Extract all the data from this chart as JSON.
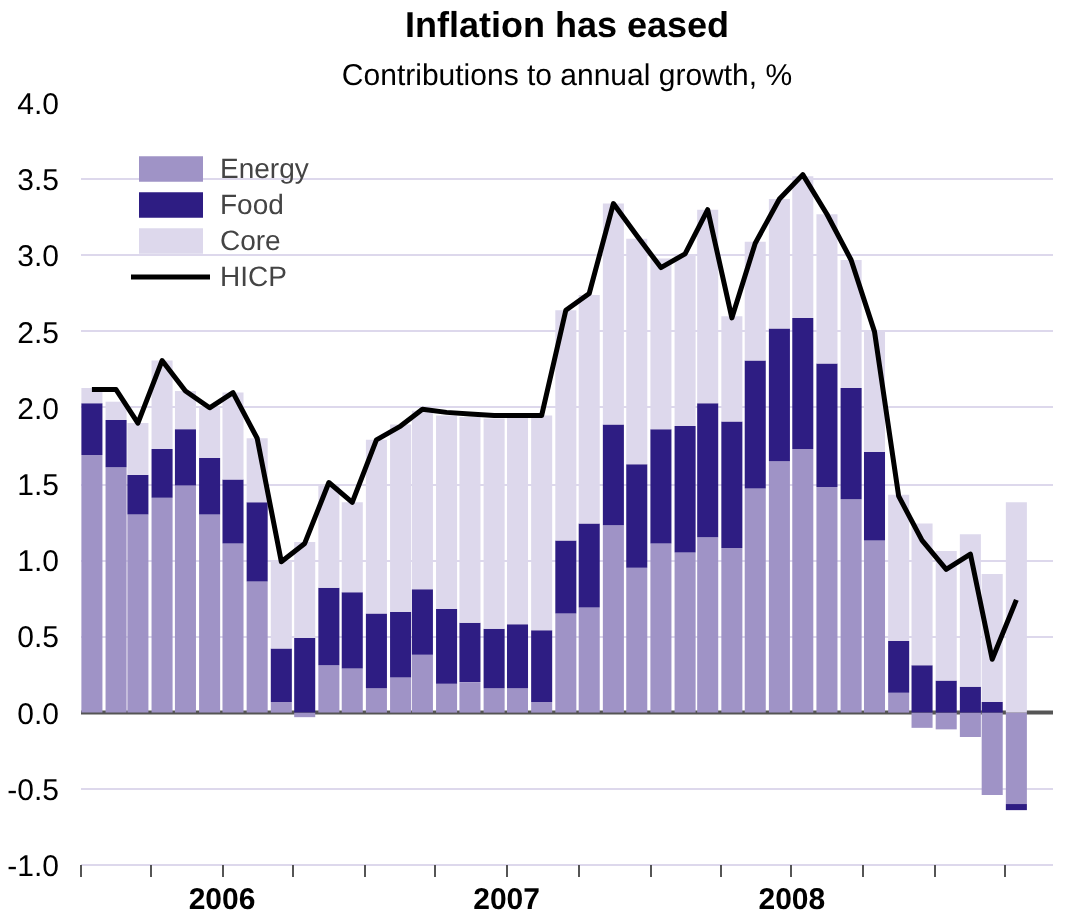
{
  "chart_data": {
    "type": "bar",
    "stacked": true,
    "title": "Inflation has eased",
    "subtitle": "Contributions to annual growth, %",
    "x": [
      "2006-01-15",
      "2006-02-15",
      "2006-03-15",
      "2006-04-15",
      "2006-05-15",
      "2006-06-15",
      "2006-07-15",
      "2006-08-15",
      "2006-09-15",
      "2006-10-15",
      "2006-11-15",
      "2006-12-15",
      "2007-01-15",
      "2007-02-15",
      "2007-03-15",
      "2007-04-15",
      "2007-05-15",
      "2007-06-15",
      "2007-07-15",
      "2007-08-15",
      "2007-09-15",
      "2007-10-15",
      "2007-11-15",
      "2007-12-15",
      "2008-01-15",
      "2008-02-15",
      "2008-03-15",
      "2008-04-15",
      "2008-05-15",
      "2008-06-15",
      "2008-07-15",
      "2008-08-15",
      "2008-09-15",
      "2008-10-15",
      "2008-11-15",
      "2008-12-15",
      "2009-01-15",
      "2009-02-15",
      "2009-03-15",
      "2009-04-15"
    ],
    "series": [
      {
        "name": "Energy",
        "color": "#9f93c6",
        "values": [
          1.69,
          1.61,
          1.3,
          1.41,
          1.49,
          1.3,
          1.11,
          0.86,
          0.07,
          -0.03,
          0.31,
          0.29,
          0.16,
          0.23,
          0.38,
          0.19,
          0.2,
          0.16,
          0.16,
          0.07,
          0.65,
          0.69,
          1.23,
          0.95,
          1.11,
          1.05,
          1.15,
          1.08,
          1.47,
          1.65,
          1.73,
          1.48,
          1.4,
          1.13,
          0.13,
          -0.1,
          -0.11,
          -0.16,
          -0.54,
          -0.6
        ]
      },
      {
        "name": "Food",
        "color": "#2e1d83",
        "values": [
          0.34,
          0.31,
          0.26,
          0.32,
          0.37,
          0.37,
          0.42,
          0.52,
          0.35,
          0.49,
          0.51,
          0.5,
          0.49,
          0.43,
          0.43,
          0.49,
          0.39,
          0.39,
          0.42,
          0.47,
          0.48,
          0.55,
          0.66,
          0.68,
          0.75,
          0.83,
          0.88,
          0.83,
          0.84,
          0.87,
          0.86,
          0.81,
          0.73,
          0.58,
          0.34,
          0.31,
          0.21,
          0.17,
          0.07,
          -0.04
        ]
      },
      {
        "name": "Core",
        "color": "#ddd8ec",
        "values": [
          0.1,
          0.12,
          0.34,
          0.58,
          0.25,
          0.34,
          0.57,
          0.42,
          0.57,
          0.63,
          0.68,
          0.59,
          1.14,
          1.23,
          1.17,
          1.27,
          1.35,
          1.38,
          1.36,
          1.41,
          1.51,
          1.5,
          1.45,
          1.48,
          1.12,
          1.13,
          1.27,
          0.69,
          0.78,
          0.85,
          0.93,
          0.98,
          0.84,
          0.79,
          0.96,
          0.93,
          0.85,
          1.0,
          0.84,
          1.38
        ]
      },
      {
        "name": "HICP",
        "type": "line",
        "color": "#000000",
        "values": [
          2.12,
          2.12,
          1.9,
          2.31,
          2.11,
          2.0,
          2.1,
          1.8,
          0.99,
          1.11,
          1.51,
          1.38,
          1.79,
          1.88,
          1.99,
          1.97,
          1.96,
          1.95,
          1.95,
          1.95,
          2.64,
          2.75,
          3.34,
          3.13,
          2.92,
          3.01,
          3.3,
          2.59,
          3.08,
          3.37,
          3.53,
          3.27,
          2.97,
          2.5,
          1.42,
          1.13,
          0.94,
          1.04,
          0.35,
          0.74
        ]
      }
    ],
    "xlim": [
      "2006-01",
      "2009-06"
    ],
    "xticks": [
      {
        "value": "2006-01",
        "label": null
      },
      {
        "value": "2006-04",
        "label": null
      },
      {
        "value": "2006-07",
        "label": "2006"
      },
      {
        "value": "2006-10",
        "label": null
      },
      {
        "value": "2007-01",
        "label": null
      },
      {
        "value": "2007-04",
        "label": null
      },
      {
        "value": "2007-07",
        "label": "2007"
      },
      {
        "value": "2007-10",
        "label": null
      },
      {
        "value": "2008-01",
        "label": null
      },
      {
        "value": "2008-04",
        "label": null
      },
      {
        "value": "2008-07",
        "label": "2008"
      },
      {
        "value": "2008-10",
        "label": null
      },
      {
        "value": "2009-01",
        "label": null
      },
      {
        "value": "2009-04",
        "label": null
      }
    ],
    "ylim": [
      -1,
      4
    ],
    "yticks": [
      {
        "value": -1,
        "label": "-1.0"
      },
      {
        "value": -0.5,
        "label": "-0.5"
      },
      {
        "value": 0,
        "label": "0.0"
      },
      {
        "value": 0.5,
        "label": "0.5"
      },
      {
        "value": 1,
        "label": "1.0"
      },
      {
        "value": 1.5,
        "label": "1.5"
      },
      {
        "value": 2,
        "label": "2.0"
      },
      {
        "value": 2.5,
        "label": "2.5"
      },
      {
        "value": 3,
        "label": "3.0"
      },
      {
        "value": 3.5,
        "label": "3.5"
      },
      {
        "value": 4,
        "label": "4.0"
      }
    ],
    "ref_lines": [
      {
        "axis": "y",
        "value": 0,
        "color": "#555555"
      }
    ],
    "grid": "y",
    "legend": "top left",
    "line_style": "solid",
    "marker": "none"
  }
}
